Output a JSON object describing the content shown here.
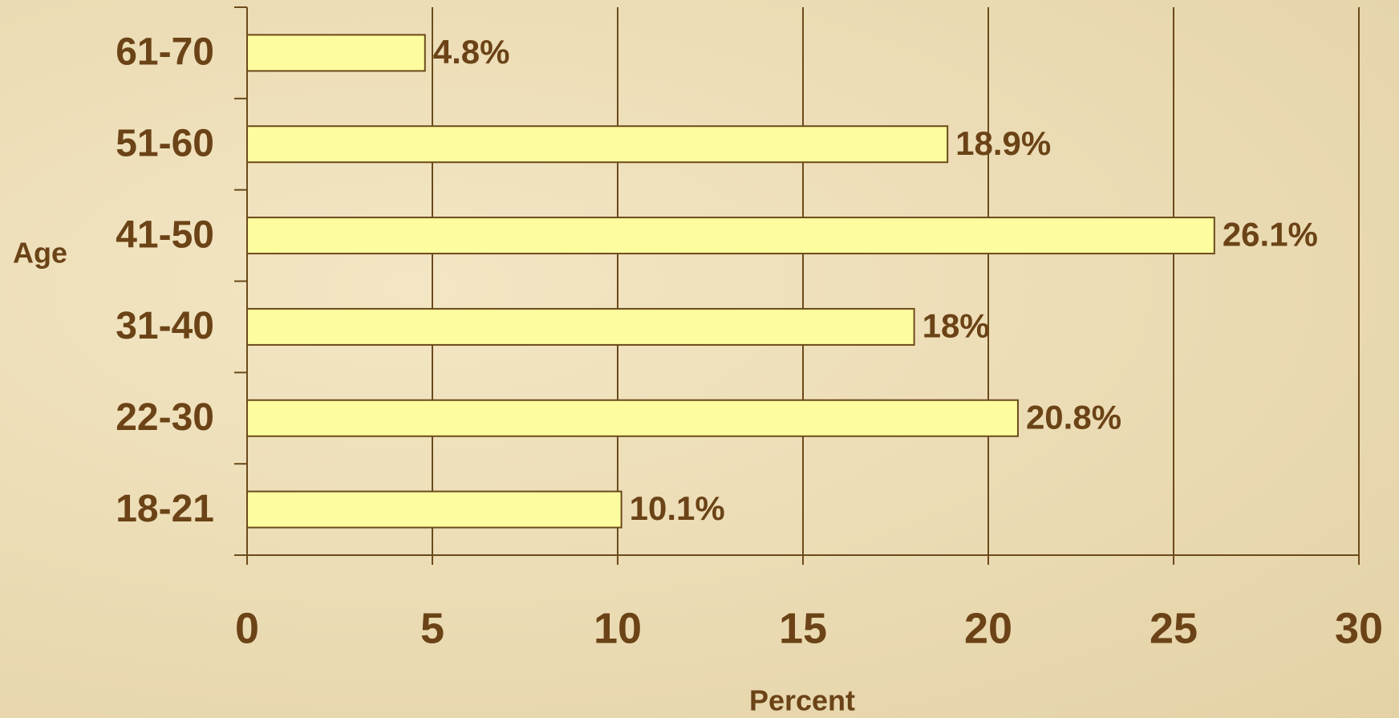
{
  "chart_data": {
    "type": "bar",
    "orientation": "horizontal",
    "xlabel": "Percent",
    "ylabel": "Age",
    "categories": [
      "18-21",
      "22-30",
      "31-40",
      "41-50",
      "51-60",
      "61-70"
    ],
    "values": [
      10.1,
      20.8,
      18,
      26.1,
      18.9,
      4.8
    ],
    "value_labels": [
      "10.1%",
      "20.8%",
      "18%",
      "26.1%",
      "18.9%",
      "4.8%"
    ],
    "color": "#fdfd9f",
    "xlim": [
      0,
      30
    ],
    "xticks": [
      0,
      5,
      10,
      15,
      20,
      25,
      30
    ],
    "grid": true
  }
}
